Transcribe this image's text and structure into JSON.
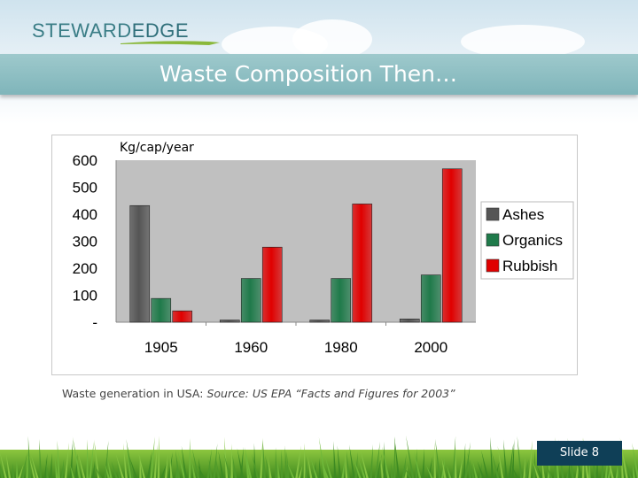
{
  "header": {
    "logo_part1": "STEWARD",
    "logo_part2": "EDGE",
    "title": "Waste Composition Then…"
  },
  "chart_data": {
    "type": "bar",
    "title": "",
    "unit_label": "Kg/cap/year",
    "categories": [
      "1905",
      "1960",
      "1980",
      "2000"
    ],
    "series": [
      {
        "name": "Ashes",
        "values": [
          432,
          8,
          8,
          12
        ],
        "color": "#555555"
      },
      {
        "name": "Organics",
        "values": [
          88,
          162,
          162,
          175
        ],
        "color": "#1f7a4a"
      },
      {
        "name": "Rubbish",
        "values": [
          42,
          278,
          438,
          568
        ],
        "color": "#e00000"
      }
    ],
    "y_ticks": [
      "-",
      "100",
      "200",
      "300",
      "400",
      "500",
      "600"
    ],
    "ylim": [
      0,
      600
    ],
    "grid": false,
    "legend_position": "right",
    "plot_background": "#c0c0c0"
  },
  "caption": {
    "prefix": "Waste generation in USA: ",
    "source": "Source: US EPA “Facts and Figures for 2003”"
  },
  "footer": {
    "slide_label": "Slide 8"
  }
}
